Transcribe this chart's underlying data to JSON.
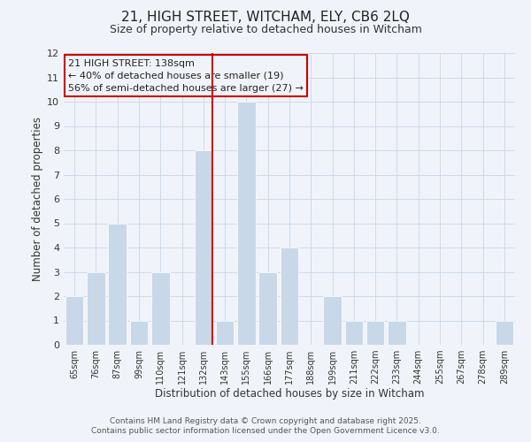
{
  "title": "21, HIGH STREET, WITCHAM, ELY, CB6 2LQ",
  "subtitle": "Size of property relative to detached houses in Witcham",
  "xlabel": "Distribution of detached houses by size in Witcham",
  "ylabel": "Number of detached properties",
  "bar_labels": [
    "65sqm",
    "76sqm",
    "87sqm",
    "99sqm",
    "110sqm",
    "121sqm",
    "132sqm",
    "143sqm",
    "155sqm",
    "166sqm",
    "177sqm",
    "188sqm",
    "199sqm",
    "211sqm",
    "222sqm",
    "233sqm",
    "244sqm",
    "255sqm",
    "267sqm",
    "278sqm",
    "289sqm"
  ],
  "bar_values": [
    2,
    3,
    5,
    1,
    3,
    0,
    8,
    1,
    10,
    3,
    4,
    0,
    2,
    1,
    1,
    1,
    0,
    0,
    0,
    0,
    1
  ],
  "bar_color": "#c8d8e8",
  "bar_edge_color": "#ffffff",
  "grid_color": "#d0d8e8",
  "background_color": "#f0f4fa",
  "ylim": [
    0,
    12
  ],
  "yticks": [
    0,
    1,
    2,
    3,
    4,
    5,
    6,
    7,
    8,
    9,
    10,
    11,
    12
  ],
  "vline_x_index": 6,
  "vline_color": "#cc0000",
  "annotation_title": "21 HIGH STREET: 138sqm",
  "annotation_line1": "← 40% of detached houses are smaller (19)",
  "annotation_line2": "56% of semi-detached houses are larger (27) →",
  "annotation_box_edge": "#cc0000",
  "footer_line1": "Contains HM Land Registry data © Crown copyright and database right 2025.",
  "footer_line2": "Contains public sector information licensed under the Open Government Licence v3.0.",
  "title_fontsize": 11,
  "subtitle_fontsize": 9,
  "annotation_fontsize": 8,
  "footer_fontsize": 6.5
}
